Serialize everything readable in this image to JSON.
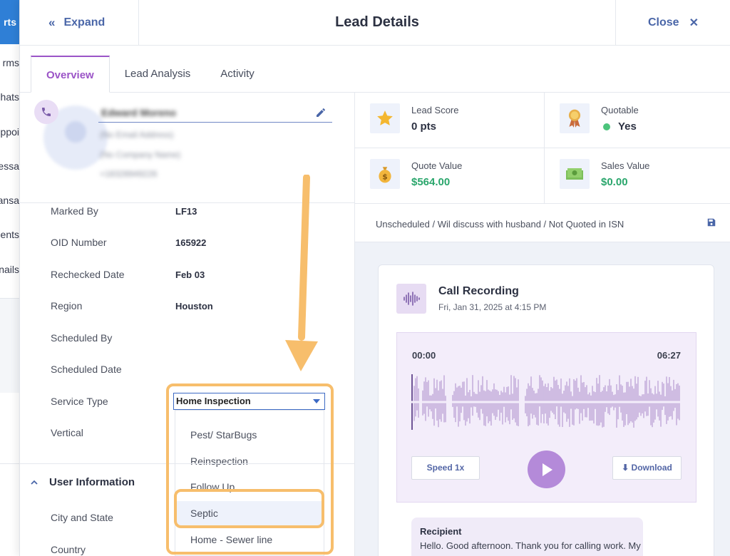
{
  "background_app": {
    "active_nav_fragment": "rts",
    "nav_fragments": [
      "rms",
      "hats",
      "ppoi",
      "essa",
      "ansa",
      "ents",
      "nails"
    ]
  },
  "header": {
    "expand_label": "Expand",
    "title": "Lead Details",
    "close_label": "Close"
  },
  "tabs": [
    {
      "label": "Overview",
      "active": true
    },
    {
      "label": "Lead Analysis",
      "active": false
    },
    {
      "label": "Activity",
      "active": false
    }
  ],
  "contact": {
    "name": "Edward Moreno",
    "email": "(No Email Address)",
    "company": "(No Company Name)",
    "phone": "+18328949226"
  },
  "fields": [
    {
      "label": "Marked By",
      "value": "LF13"
    },
    {
      "label": "OID Number",
      "value": "165922"
    },
    {
      "label": "Rechecked Date",
      "value": "Feb 03"
    },
    {
      "label": "Region",
      "value": "Houston"
    },
    {
      "label": "Scheduled By",
      "value": ""
    },
    {
      "label": "Scheduled Date",
      "value": ""
    },
    {
      "label": "Service Type",
      "value": ""
    },
    {
      "label": "Vertical",
      "value": ""
    }
  ],
  "service_type_select": {
    "selected": "Home Inspection",
    "options": [
      "Pest/ StarBugs",
      "Reinspection",
      "Follow Up",
      "Septic",
      "Home - Sewer line"
    ],
    "highlighted": "Septic"
  },
  "user_info": {
    "heading": "User Information",
    "fields": [
      "City and State",
      "Country"
    ]
  },
  "stats": {
    "lead_score": {
      "label": "Lead Score",
      "value": "0 pts"
    },
    "quotable": {
      "label": "Quotable",
      "value": "Yes"
    },
    "quote_value": {
      "label": "Quote Value",
      "value": "$564.00"
    },
    "sales_value": {
      "label": "Sales Value",
      "value": "$0.00"
    }
  },
  "status_text": "Unscheduled / Wil discuss with husband / Not Quoted in ISN",
  "call_recording": {
    "title": "Call Recording",
    "date": "Fri, Jan 31, 2025 at 4:15 PM",
    "time_start": "00:00",
    "time_end": "06:27",
    "speed_label": "Speed 1x",
    "download_label": "Download",
    "transcript": {
      "speaker": "Recipient",
      "text": "Hello. Good afternoon. Thank you for calling work. My"
    }
  },
  "colors": {
    "accent_purple": "#9b54c7",
    "link_blue": "#4a66a8",
    "money_green": "#2aa66c",
    "annotation_orange": "#f7be6c",
    "waveform": "#b79bd2"
  }
}
